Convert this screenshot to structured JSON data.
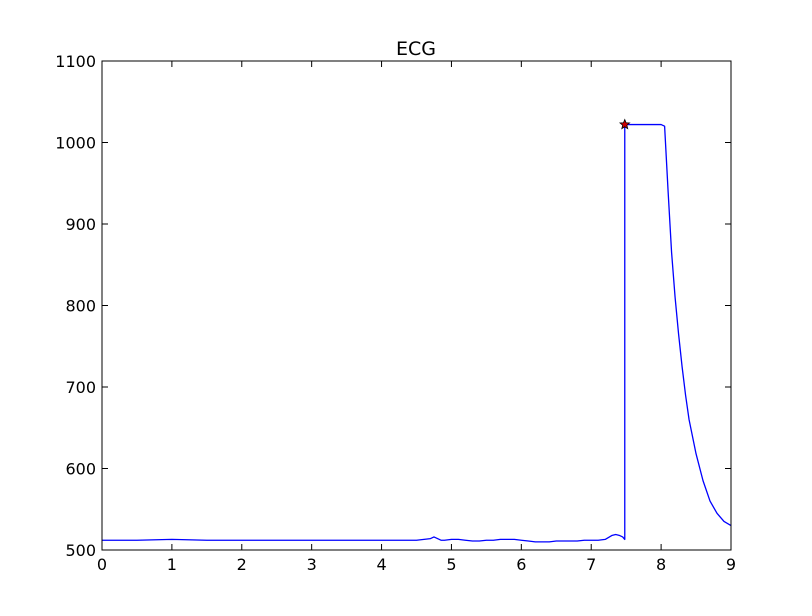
{
  "chart_data": {
    "type": "line",
    "title": "ECG",
    "xlabel": "",
    "ylabel": "",
    "xlim": [
      0,
      9
    ],
    "ylim": [
      500,
      1100
    ],
    "grid": false,
    "xticks": [
      0,
      1,
      2,
      3,
      4,
      5,
      6,
      7,
      8,
      9
    ],
    "yticks": [
      500,
      600,
      700,
      800,
      900,
      1000,
      1100
    ],
    "xtick_labels": [
      "0",
      "1",
      "2",
      "3",
      "4",
      "5",
      "6",
      "7",
      "8",
      "9"
    ],
    "ytick_labels": [
      "500",
      "600",
      "700",
      "800",
      "900",
      "1000",
      "1100"
    ],
    "line_color": "#0000ff",
    "marker_color": "#cc0000",
    "series": [
      {
        "x": [
          0.0,
          0.5,
          1.0,
          1.5,
          2.0,
          2.5,
          3.0,
          3.5,
          4.0,
          4.5,
          4.7,
          4.75,
          4.8,
          4.85,
          4.9,
          5.0,
          5.1,
          5.2,
          5.3,
          5.4,
          5.5,
          5.6,
          5.7,
          5.8,
          5.9,
          6.0,
          6.1,
          6.2,
          6.3,
          6.4,
          6.5,
          6.6,
          6.7,
          6.8,
          6.9,
          7.0,
          7.1,
          7.2,
          7.3,
          7.35,
          7.4,
          7.45,
          7.48,
          7.48,
          7.5,
          7.6,
          7.8,
          8.0,
          8.05,
          8.1,
          8.15,
          8.2,
          8.25,
          8.3,
          8.35,
          8.4,
          8.5,
          8.6,
          8.7,
          8.8,
          8.9,
          9.0
        ],
        "y": [
          512,
          512,
          513,
          512,
          512,
          512,
          512,
          512,
          512,
          512,
          514,
          516,
          514,
          512,
          512,
          513,
          513,
          512,
          511,
          511,
          512,
          512,
          513,
          513,
          513,
          512,
          511,
          510,
          510,
          510,
          511,
          511,
          511,
          511,
          512,
          512,
          512,
          513,
          518,
          519,
          518,
          516,
          513,
          1022,
          1022,
          1022,
          1022,
          1022,
          1020,
          940,
          865,
          810,
          765,
          725,
          690,
          660,
          618,
          585,
          560,
          545,
          535,
          530
        ]
      }
    ],
    "markers": [
      {
        "x": 7.48,
        "y": 1022,
        "shape": "star"
      }
    ]
  }
}
